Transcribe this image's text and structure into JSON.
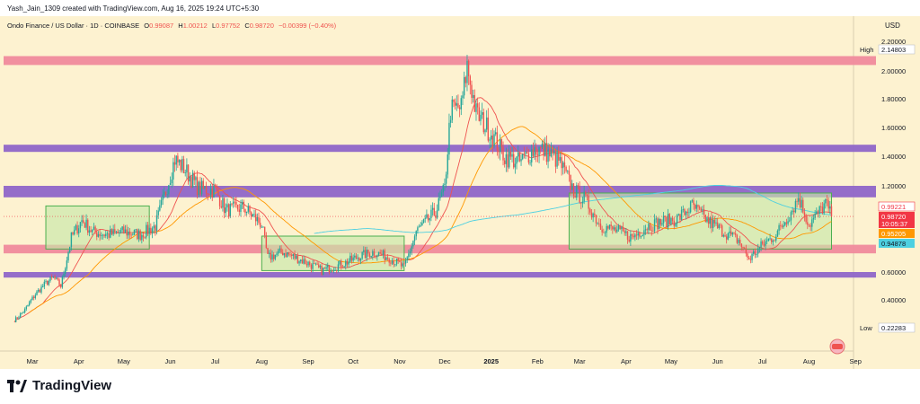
{
  "header": {
    "created_by": "Yash_Jain_1309 created with TradingView.com, Aug 16, 2025 19:24 UTC+5:30",
    "symbol": "Ondo Finance / US Dollar · 1D · COINBASE",
    "o_label": "O",
    "o_value": "0.99087",
    "h_label": "H",
    "h_value": "1.00212",
    "l_label": "L",
    "l_value": "0.97752",
    "c_label": "C",
    "c_value": "0.98720",
    "change": "−0.00399 (−0.40%)"
  },
  "currency": "USD",
  "branding": "TradingView",
  "colors": {
    "background": "#fdf2d0",
    "up": "#26a69a",
    "down": "#ef5350",
    "pink_zone": "#f08a9c",
    "purple_zone": "#8f65c8",
    "green_box": "#c8e6a8",
    "green_box_border": "#4caf50",
    "ma_fast": "#ef5350",
    "ma_mid": "#ff9800",
    "ma_slow": "#4dd0e1"
  },
  "chart_data": {
    "type": "candlestick",
    "y_ticks": [
      "2.20000",
      "2.00000",
      "1.80000",
      "1.60000",
      "1.40000",
      "1.20000",
      "0.60000",
      "0.40000"
    ],
    "y_tick_values": [
      2.2,
      2.0,
      1.8,
      1.6,
      1.4,
      1.2,
      0.6,
      0.4
    ],
    "x_ticks": [
      "Mar",
      "Apr",
      "May",
      "Jun",
      "Jul",
      "Aug",
      "Sep",
      "Oct",
      "Nov",
      "Dec",
      "2025",
      "Feb",
      "Mar",
      "Apr",
      "May",
      "Jun",
      "Jul",
      "Aug",
      "Sep"
    ],
    "x_tick_dates": [
      "2024-03-01",
      "2024-04-01",
      "2024-05-01",
      "2024-06-01",
      "2024-07-01",
      "2024-08-01",
      "2024-09-01",
      "2024-10-01",
      "2024-11-01",
      "2024-12-01",
      "2025-01-01",
      "2025-02-01",
      "2025-03-01",
      "2025-04-01",
      "2025-05-01",
      "2025-06-01",
      "2025-07-01",
      "2025-08-01",
      "2025-09-01"
    ],
    "high": {
      "label": "High",
      "value": "2.14803"
    },
    "low": {
      "label": "Low",
      "value": "0.22283"
    },
    "price_labels": [
      {
        "value": "0.99221",
        "color": "#f23645"
      },
      {
        "value": "0.98720",
        "color": "#ffffff"
      },
      {
        "value": "10:05:37",
        "color": "#ffffff"
      },
      {
        "value": "0.95205",
        "color": "#ff9800"
      },
      {
        "value": "0.94878",
        "color": "#4dd0e1"
      }
    ],
    "zones": [
      {
        "kind": "resistance",
        "color": "pink",
        "from": 2.04,
        "to": 2.1
      },
      {
        "kind": "resistance",
        "color": "purple",
        "from": 1.43,
        "to": 1.48
      },
      {
        "kind": "resistance",
        "color": "purple",
        "from": 1.12,
        "to": 1.2
      },
      {
        "kind": "support",
        "color": "pink",
        "from": 0.73,
        "to": 0.79
      },
      {
        "kind": "support",
        "color": "purple",
        "from": 0.56,
        "to": 0.6
      }
    ],
    "consolidation_boxes": [
      {
        "start": "2024-03-10",
        "end": "2024-05-18",
        "from": 0.76,
        "to": 1.06
      },
      {
        "start": "2024-08-01",
        "end": "2024-11-04",
        "from": 0.61,
        "to": 0.85
      },
      {
        "start": "2025-02-22",
        "end": "2025-08-16",
        "from": 0.76,
        "to": 1.15
      }
    ],
    "close_path": [
      [
        "2024-02-18",
        0.26
      ],
      [
        "2024-02-25",
        0.33
      ],
      [
        "2024-03-03",
        0.44
      ],
      [
        "2024-03-10",
        0.52
      ],
      [
        "2024-03-15",
        0.56
      ],
      [
        "2024-03-20",
        0.5
      ],
      [
        "2024-03-27",
        0.84
      ],
      [
        "2024-04-03",
        0.96
      ],
      [
        "2024-04-10",
        0.88
      ],
      [
        "2024-04-20",
        0.86
      ],
      [
        "2024-05-01",
        0.88
      ],
      [
        "2024-05-12",
        0.86
      ],
      [
        "2024-05-22",
        0.92
      ],
      [
        "2024-05-30",
        1.2
      ],
      [
        "2024-06-04",
        1.38
      ],
      [
        "2024-06-10",
        1.32
      ],
      [
        "2024-06-20",
        1.18
      ],
      [
        "2024-07-01",
        1.17
      ],
      [
        "2024-07-08",
        1.03
      ],
      [
        "2024-07-20",
        1.05
      ],
      [
        "2024-08-01",
        0.93
      ],
      [
        "2024-08-05",
        0.7
      ],
      [
        "2024-08-15",
        0.74
      ],
      [
        "2024-09-01",
        0.66
      ],
      [
        "2024-09-10",
        0.61
      ],
      [
        "2024-09-25",
        0.66
      ],
      [
        "2024-10-05",
        0.71
      ],
      [
        "2024-10-15",
        0.74
      ],
      [
        "2024-10-25",
        0.7
      ],
      [
        "2024-11-04",
        0.63
      ],
      [
        "2024-11-12",
        0.88
      ],
      [
        "2024-11-25",
        1.02
      ],
      [
        "2024-12-01",
        1.18
      ],
      [
        "2024-12-05",
        1.72
      ],
      [
        "2024-12-12",
        1.74
      ],
      [
        "2024-12-16",
        2.03
      ],
      [
        "2024-12-22",
        1.7
      ],
      [
        "2025-01-01",
        1.56
      ],
      [
        "2025-01-10",
        1.4
      ],
      [
        "2025-01-20",
        1.36
      ],
      [
        "2025-01-30",
        1.45
      ],
      [
        "2025-02-05",
        1.44
      ],
      [
        "2025-02-15",
        1.37
      ],
      [
        "2025-02-25",
        1.17
      ],
      [
        "2025-03-05",
        1.1
      ],
      [
        "2025-03-15",
        0.92
      ],
      [
        "2025-03-25",
        0.89
      ],
      [
        "2025-04-05",
        0.84
      ],
      [
        "2025-04-15",
        0.92
      ],
      [
        "2025-04-25",
        0.95
      ],
      [
        "2025-05-05",
        0.97
      ],
      [
        "2025-05-15",
        1.06
      ],
      [
        "2025-05-25",
        0.96
      ],
      [
        "2025-06-05",
        0.88
      ],
      [
        "2025-06-15",
        0.82
      ],
      [
        "2025-06-22",
        0.69
      ],
      [
        "2025-07-01",
        0.79
      ],
      [
        "2025-07-10",
        0.86
      ],
      [
        "2025-07-20",
        1.02
      ],
      [
        "2025-07-25",
        1.12
      ],
      [
        "2025-08-01",
        0.93
      ],
      [
        "2025-08-08",
        1.02
      ],
      [
        "2025-08-12",
        1.08
      ],
      [
        "2025-08-16",
        0.9872
      ]
    ]
  }
}
